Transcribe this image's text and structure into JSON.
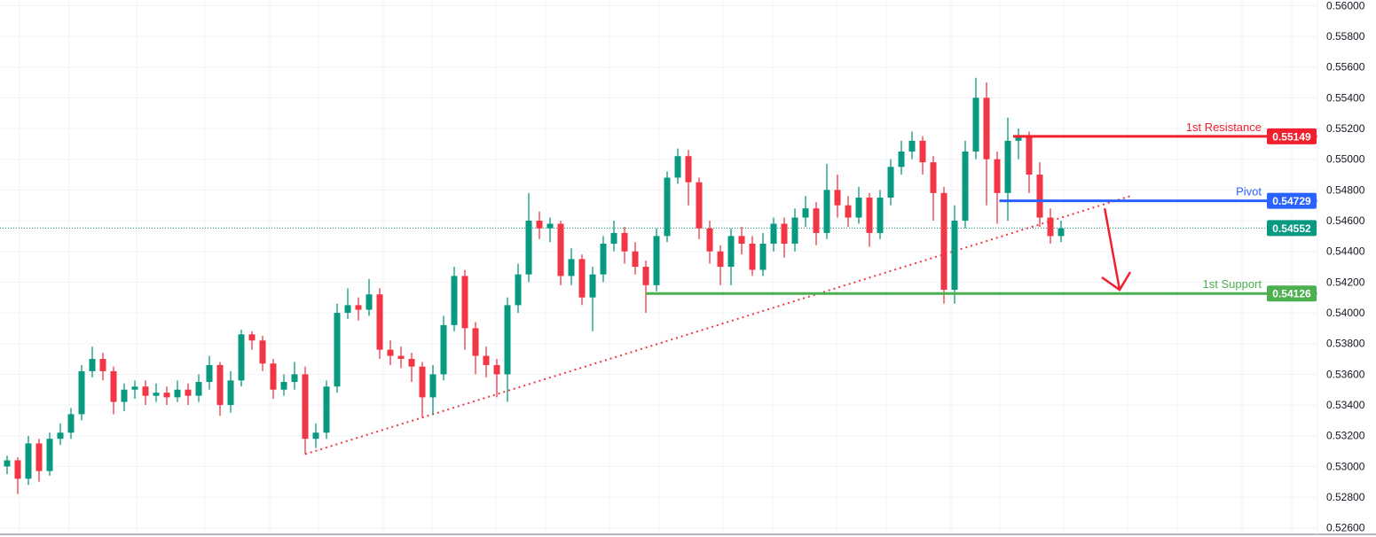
{
  "chart_data": {
    "type": "candlestick",
    "title": "",
    "xlabel": "",
    "ylabel": "",
    "ylim": [
      0.5256,
      0.5603
    ],
    "y_ticks": [
      "0.56000",
      "0.55800",
      "0.55600",
      "0.55400",
      "0.55200",
      "0.55000",
      "0.54800",
      "0.54600",
      "0.54400",
      "0.54200",
      "0.54000",
      "0.53800",
      "0.53600",
      "0.53400",
      "0.53200",
      "0.53000",
      "0.52800",
      "0.52600"
    ],
    "grid": true,
    "colors": {
      "up": "#089981",
      "down": "#F23645"
    },
    "candles": {
      "open": [
        0.53,
        0.5304,
        0.5292,
        0.5315,
        0.5297,
        0.5318,
        0.5322,
        0.5334,
        0.5362,
        0.537,
        0.5362,
        0.5342,
        0.535,
        0.5352,
        0.5346,
        0.5348,
        0.5345,
        0.535,
        0.5346,
        0.5355,
        0.5366,
        0.534,
        0.5356,
        0.5386,
        0.5382,
        0.5367,
        0.535,
        0.5355,
        0.536,
        0.5318,
        0.5322,
        0.5352,
        0.54,
        0.5405,
        0.5402,
        0.5412,
        0.5376,
        0.5372,
        0.537,
        0.5365,
        0.5345,
        0.536,
        0.5392,
        0.5424,
        0.539,
        0.5372,
        0.5366,
        0.536,
        0.5405,
        0.5425,
        0.546,
        0.5455,
        0.5458,
        0.5424,
        0.5435,
        0.541,
        0.5425,
        0.5445,
        0.5452,
        0.544,
        0.543,
        0.5418,
        0.545,
        0.5488,
        0.5502,
        0.5485,
        0.5455,
        0.544,
        0.543,
        0.545,
        0.5445,
        0.5428,
        0.5445,
        0.5458,
        0.5445,
        0.5462,
        0.5468,
        0.5452,
        0.548,
        0.547,
        0.5462,
        0.5475,
        0.5452,
        0.5475,
        0.5495,
        0.5505,
        0.5512,
        0.5498,
        0.5478,
        0.5415,
        0.546,
        0.5505,
        0.554,
        0.55,
        0.5478,
        0.5512,
        0.5515,
        0.549,
        0.5462,
        0.545
      ],
      "high": [
        0.5307,
        0.5306,
        0.532,
        0.5318,
        0.5322,
        0.5328,
        0.5338,
        0.5366,
        0.5378,
        0.5374,
        0.5365,
        0.5354,
        0.5356,
        0.5356,
        0.5354,
        0.5352,
        0.5356,
        0.5354,
        0.536,
        0.5372,
        0.5368,
        0.5362,
        0.5389,
        0.5388,
        0.5385,
        0.537,
        0.536,
        0.5368,
        0.5365,
        0.5328,
        0.5356,
        0.5406,
        0.5416,
        0.541,
        0.5422,
        0.5416,
        0.5382,
        0.5378,
        0.5374,
        0.5368,
        0.5366,
        0.5398,
        0.543,
        0.5428,
        0.5394,
        0.5378,
        0.537,
        0.541,
        0.5432,
        0.5478,
        0.5466,
        0.5462,
        0.546,
        0.5442,
        0.5438,
        0.543,
        0.545,
        0.546,
        0.5456,
        0.5446,
        0.5434,
        0.5455,
        0.5492,
        0.5507,
        0.5506,
        0.5488,
        0.546,
        0.5444,
        0.5455,
        0.5456,
        0.545,
        0.5452,
        0.5462,
        0.5462,
        0.5468,
        0.5476,
        0.5472,
        0.5497,
        0.549,
        0.5476,
        0.5482,
        0.5478,
        0.548,
        0.55,
        0.5512,
        0.5518,
        0.5515,
        0.5502,
        0.5482,
        0.547,
        0.5512,
        0.5553,
        0.555,
        0.5505,
        0.5527,
        0.552,
        0.5518,
        0.5498,
        0.5468,
        0.546
      ],
      "low": [
        0.5295,
        0.5282,
        0.5288,
        0.529,
        0.5294,
        0.5314,
        0.5318,
        0.533,
        0.5358,
        0.5356,
        0.5334,
        0.5336,
        0.5344,
        0.534,
        0.5342,
        0.534,
        0.5342,
        0.534,
        0.5342,
        0.535,
        0.5333,
        0.5335,
        0.5352,
        0.5376,
        0.5362,
        0.5344,
        0.5346,
        0.535,
        0.5308,
        0.5312,
        0.5318,
        0.5348,
        0.5396,
        0.5395,
        0.5398,
        0.537,
        0.5366,
        0.5364,
        0.5355,
        0.5332,
        0.5334,
        0.5356,
        0.5388,
        0.5376,
        0.536,
        0.5358,
        0.5345,
        0.5342,
        0.54,
        0.542,
        0.5448,
        0.5446,
        0.5418,
        0.5418,
        0.5405,
        0.5388,
        0.542,
        0.544,
        0.5432,
        0.5425,
        0.54,
        0.5414,
        0.5446,
        0.5484,
        0.547,
        0.5448,
        0.5432,
        0.5418,
        0.5418,
        0.5438,
        0.5424,
        0.5424,
        0.544,
        0.5436,
        0.544,
        0.5456,
        0.5444,
        0.5448,
        0.5462,
        0.5456,
        0.5458,
        0.5443,
        0.5448,
        0.547,
        0.549,
        0.55,
        0.549,
        0.546,
        0.5406,
        0.5406,
        0.5455,
        0.55,
        0.547,
        0.5458,
        0.546,
        0.55,
        0.5478,
        0.5456,
        0.5445,
        0.5446
      ],
      "close": [
        0.5304,
        0.5292,
        0.5315,
        0.5297,
        0.5318,
        0.5322,
        0.5334,
        0.5362,
        0.537,
        0.5362,
        0.5342,
        0.535,
        0.5352,
        0.5346,
        0.5348,
        0.5345,
        0.535,
        0.5346,
        0.5355,
        0.5366,
        0.534,
        0.5356,
        0.5386,
        0.5382,
        0.5367,
        0.535,
        0.5355,
        0.536,
        0.5318,
        0.5322,
        0.5352,
        0.54,
        0.5405,
        0.5402,
        0.5412,
        0.5376,
        0.5372,
        0.537,
        0.5365,
        0.5345,
        0.536,
        0.5392,
        0.5424,
        0.539,
        0.5372,
        0.5366,
        0.536,
        0.5405,
        0.5425,
        0.546,
        0.5455,
        0.5458,
        0.5424,
        0.5435,
        0.541,
        0.5425,
        0.5445,
        0.5452,
        0.544,
        0.543,
        0.5418,
        0.545,
        0.5488,
        0.5502,
        0.5485,
        0.5455,
        0.544,
        0.543,
        0.545,
        0.5445,
        0.5428,
        0.5445,
        0.5458,
        0.5445,
        0.5462,
        0.5468,
        0.5452,
        0.548,
        0.547,
        0.5462,
        0.5475,
        0.5452,
        0.5475,
        0.5495,
        0.5505,
        0.5512,
        0.5498,
        0.5478,
        0.5415,
        0.546,
        0.5505,
        0.554,
        0.55,
        0.5478,
        0.5512,
        0.5515,
        0.549,
        0.5462,
        0.545,
        0.5455
      ]
    },
    "current_price": {
      "value": 0.54552,
      "label": "0.54552",
      "color": "#089981"
    },
    "levels": [
      {
        "name": "1st Resistance",
        "value": 0.55149,
        "label": "0.55149",
        "color": "#F0202E",
        "start_index": 94.5
      },
      {
        "name": "Pivot",
        "value": 0.54729,
        "label": "0.54729",
        "color": "#2962FF",
        "start_index": 93.2
      },
      {
        "name": "1st Support",
        "value": 0.54126,
        "label": "0.54126",
        "color": "#4CAF50",
        "start_index": 60
      }
    ],
    "trendline": {
      "style": "dotted",
      "color": "#F23645",
      "from": {
        "index": 28,
        "price": 0.5308
      },
      "to": {
        "index": 105.5,
        "price": 0.5476
      }
    },
    "arrow": {
      "color": "#F0202E",
      "direction": "down",
      "from": {
        "index": 103.1,
        "price": 0.5468
      },
      "to": {
        "index": 104.5,
        "price": 0.5415
      }
    }
  }
}
